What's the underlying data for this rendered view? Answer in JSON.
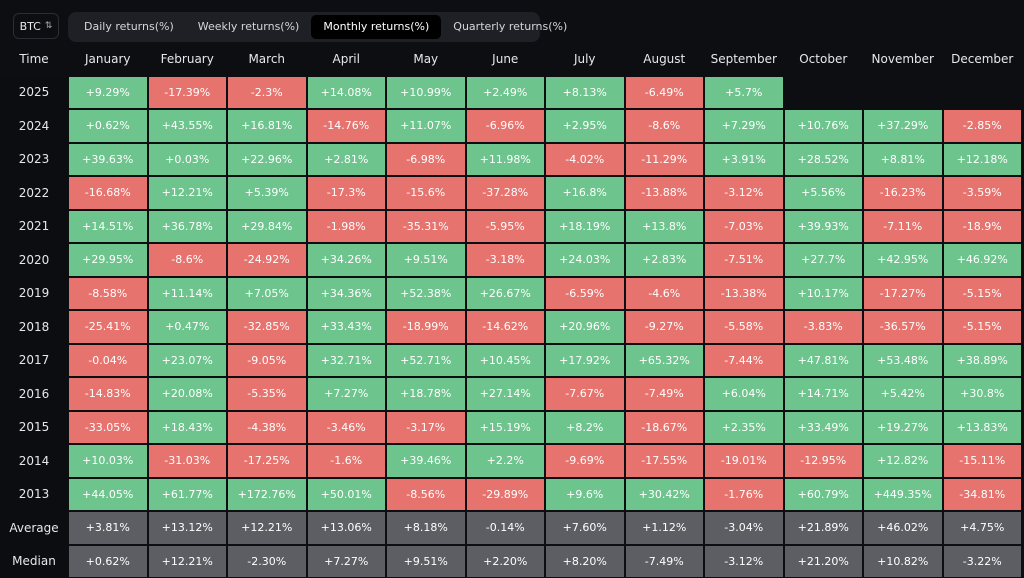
{
  "asset_selector": {
    "value": "BTC",
    "icon": "up-down-chevron-icon"
  },
  "tabs": [
    {
      "label": "Daily returns(%)",
      "active": false
    },
    {
      "label": "Weekly returns(%)",
      "active": false
    },
    {
      "label": "Monthly returns(%)",
      "active": true
    },
    {
      "label": "Quarterly returns(%)",
      "active": false
    }
  ],
  "colors": {
    "positive": "#6dc48d",
    "negative": "#e7736e",
    "summary": "#5d5e63",
    "background": "#0c0e12"
  },
  "table": {
    "time_header": "Time",
    "months": [
      "January",
      "February",
      "March",
      "April",
      "May",
      "June",
      "July",
      "August",
      "September",
      "October",
      "November",
      "December"
    ],
    "rows": [
      {
        "year": "2025",
        "values": [
          "+9.29%",
          "-17.39%",
          "-2.3%",
          "+14.08%",
          "+10.99%",
          "+2.49%",
          "+8.13%",
          "-6.49%",
          "+5.7%",
          "",
          "",
          ""
        ]
      },
      {
        "year": "2024",
        "values": [
          "+0.62%",
          "+43.55%",
          "+16.81%",
          "-14.76%",
          "+11.07%",
          "-6.96%",
          "+2.95%",
          "-8.6%",
          "+7.29%",
          "+10.76%",
          "+37.29%",
          "-2.85%"
        ]
      },
      {
        "year": "2023",
        "values": [
          "+39.63%",
          "+0.03%",
          "+22.96%",
          "+2.81%",
          "-6.98%",
          "+11.98%",
          "-4.02%",
          "-11.29%",
          "+3.91%",
          "+28.52%",
          "+8.81%",
          "+12.18%"
        ]
      },
      {
        "year": "2022",
        "values": [
          "-16.68%",
          "+12.21%",
          "+5.39%",
          "-17.3%",
          "-15.6%",
          "-37.28%",
          "+16.8%",
          "-13.88%",
          "-3.12%",
          "+5.56%",
          "-16.23%",
          "-3.59%"
        ]
      },
      {
        "year": "2021",
        "values": [
          "+14.51%",
          "+36.78%",
          "+29.84%",
          "-1.98%",
          "-35.31%",
          "-5.95%",
          "+18.19%",
          "+13.8%",
          "-7.03%",
          "+39.93%",
          "-7.11%",
          "-18.9%"
        ]
      },
      {
        "year": "2020",
        "values": [
          "+29.95%",
          "-8.6%",
          "-24.92%",
          "+34.26%",
          "+9.51%",
          "-3.18%",
          "+24.03%",
          "+2.83%",
          "-7.51%",
          "+27.7%",
          "+42.95%",
          "+46.92%"
        ]
      },
      {
        "year": "2019",
        "values": [
          "-8.58%",
          "+11.14%",
          "+7.05%",
          "+34.36%",
          "+52.38%",
          "+26.67%",
          "-6.59%",
          "-4.6%",
          "-13.38%",
          "+10.17%",
          "-17.27%",
          "-5.15%"
        ]
      },
      {
        "year": "2018",
        "values": [
          "-25.41%",
          "+0.47%",
          "-32.85%",
          "+33.43%",
          "-18.99%",
          "-14.62%",
          "+20.96%",
          "-9.27%",
          "-5.58%",
          "-3.83%",
          "-36.57%",
          "-5.15%"
        ]
      },
      {
        "year": "2017",
        "values": [
          "-0.04%",
          "+23.07%",
          "-9.05%",
          "+32.71%",
          "+52.71%",
          "+10.45%",
          "+17.92%",
          "+65.32%",
          "-7.44%",
          "+47.81%",
          "+53.48%",
          "+38.89%"
        ]
      },
      {
        "year": "2016",
        "values": [
          "-14.83%",
          "+20.08%",
          "-5.35%",
          "+7.27%",
          "+18.78%",
          "+27.14%",
          "-7.67%",
          "-7.49%",
          "+6.04%",
          "+14.71%",
          "+5.42%",
          "+30.8%"
        ]
      },
      {
        "year": "2015",
        "values": [
          "-33.05%",
          "+18.43%",
          "-4.38%",
          "-3.46%",
          "-3.17%",
          "+15.19%",
          "+8.2%",
          "-18.67%",
          "+2.35%",
          "+33.49%",
          "+19.27%",
          "+13.83%"
        ]
      },
      {
        "year": "2014",
        "values": [
          "+10.03%",
          "-31.03%",
          "-17.25%",
          "-1.6%",
          "+39.46%",
          "+2.2%",
          "-9.69%",
          "-17.55%",
          "-19.01%",
          "-12.95%",
          "+12.82%",
          "-15.11%"
        ]
      },
      {
        "year": "2013",
        "values": [
          "+44.05%",
          "+61.77%",
          "+172.76%",
          "+50.01%",
          "-8.56%",
          "-29.89%",
          "+9.6%",
          "+30.42%",
          "-1.76%",
          "+60.79%",
          "+449.35%",
          "-34.81%"
        ]
      }
    ],
    "summary": [
      {
        "label": "Average",
        "values": [
          "+3.81%",
          "+13.12%",
          "+12.21%",
          "+13.06%",
          "+8.18%",
          "-0.14%",
          "+7.60%",
          "+1.12%",
          "-3.04%",
          "+21.89%",
          "+46.02%",
          "+4.75%"
        ]
      },
      {
        "label": "Median",
        "values": [
          "+0.62%",
          "+12.21%",
          "-2.30%",
          "+7.27%",
          "+9.51%",
          "+2.20%",
          "+8.20%",
          "-7.49%",
          "-3.12%",
          "+21.20%",
          "+10.82%",
          "-3.22%"
        ]
      }
    ]
  }
}
